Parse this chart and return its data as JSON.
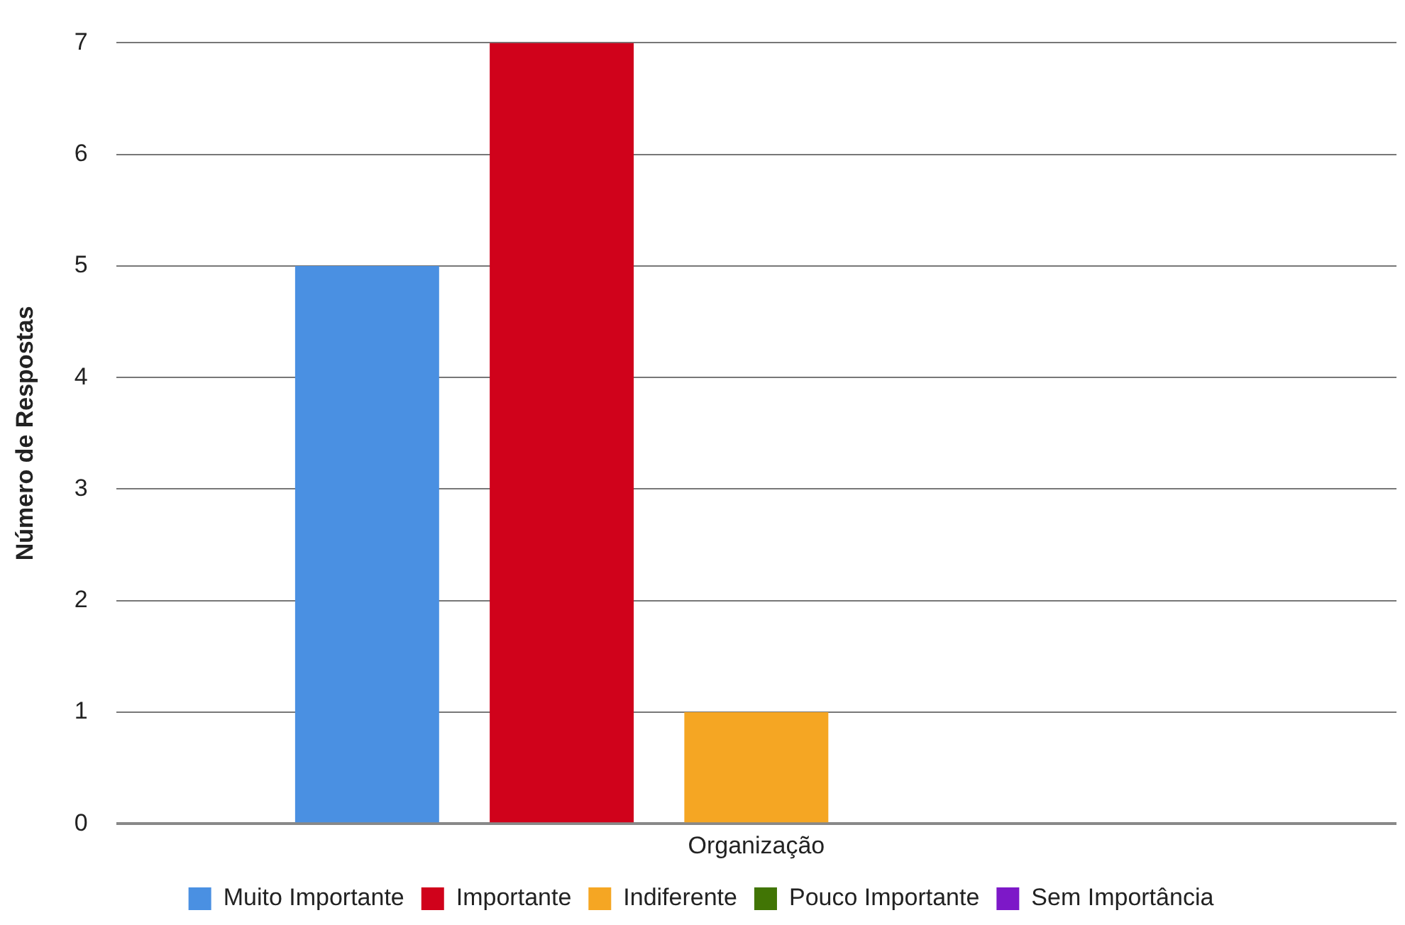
{
  "chart_data": {
    "type": "bar",
    "ylabel": "Número de Respostas",
    "categories": [
      "Organização"
    ],
    "series": [
      {
        "name": "Muito Importante",
        "color": "#4a90e2",
        "values": [
          5
        ]
      },
      {
        "name": "Importante",
        "color": "#d0021b",
        "values": [
          7
        ]
      },
      {
        "name": "Indiferente",
        "color": "#f5a623",
        "values": [
          1
        ]
      },
      {
        "name": "Pouco Importante",
        "color": "#417505",
        "values": [
          0
        ]
      },
      {
        "name": "Sem Importância",
        "color": "#7d18c8",
        "values": [
          0
        ]
      }
    ],
    "ylim": [
      0,
      7
    ],
    "yticks": [
      0,
      1,
      2,
      3,
      4,
      5,
      6,
      7
    ],
    "grid": "y",
    "legend": "bottom"
  }
}
